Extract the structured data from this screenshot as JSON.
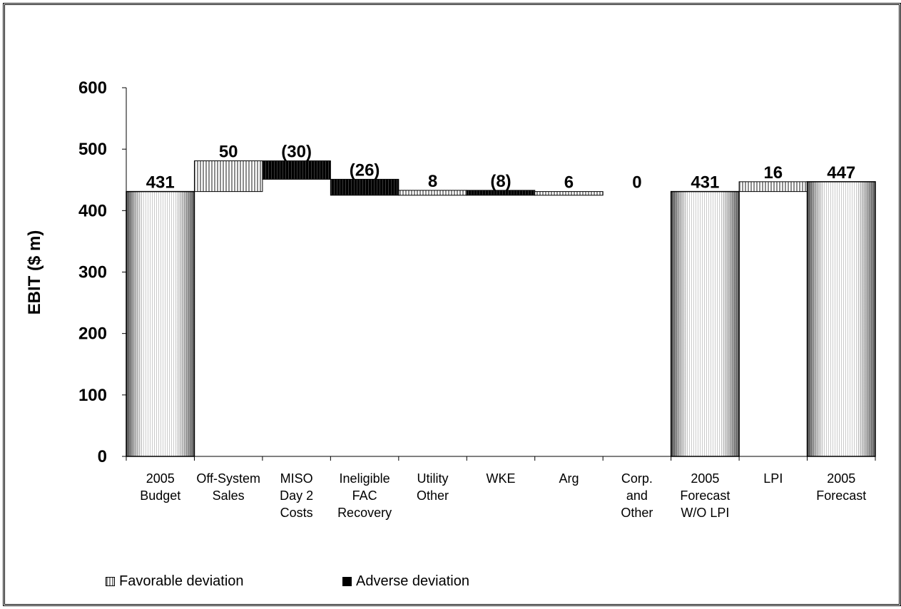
{
  "chart_data": {
    "type": "bar",
    "subtype": "waterfall",
    "ylabel": "EBIT ($ m)",
    "ylim": [
      0,
      600
    ],
    "yticks": [
      0,
      100,
      200,
      300,
      400,
      500,
      600
    ],
    "categories": [
      {
        "lines": [
          "2005",
          "Budget"
        ]
      },
      {
        "lines": [
          "Off-System",
          "Sales"
        ]
      },
      {
        "lines": [
          "MISO",
          "Day 2",
          "Costs"
        ]
      },
      {
        "lines": [
          "Ineligible",
          "FAC",
          "Recovery"
        ]
      },
      {
        "lines": [
          "Utility",
          "Other"
        ]
      },
      {
        "lines": [
          "WKE"
        ]
      },
      {
        "lines": [
          "Arg"
        ]
      },
      {
        "lines": [
          "Corp.",
          "and",
          "Other"
        ]
      },
      {
        "lines": [
          "2005",
          "Forecast",
          "W/O LPI"
        ]
      },
      {
        "lines": [
          "LPI"
        ]
      },
      {
        "lines": [
          "2005",
          "Forecast"
        ]
      }
    ],
    "bars": [
      {
        "kind": "total",
        "start": 0,
        "end": 431,
        "label": "431"
      },
      {
        "kind": "favorable",
        "start": 431,
        "end": 481,
        "label": "50"
      },
      {
        "kind": "adverse",
        "start": 481,
        "end": 451,
        "label": "(30)"
      },
      {
        "kind": "adverse",
        "start": 451,
        "end": 425,
        "label": "(26)"
      },
      {
        "kind": "favorable",
        "start": 425,
        "end": 433,
        "label": "8"
      },
      {
        "kind": "adverse",
        "start": 433,
        "end": 425,
        "label": "(8)"
      },
      {
        "kind": "favorable",
        "start": 425,
        "end": 431,
        "label": "6"
      },
      {
        "kind": "favorable",
        "start": 431,
        "end": 431,
        "label": "0"
      },
      {
        "kind": "total",
        "start": 0,
        "end": 431,
        "label": "431"
      },
      {
        "kind": "favorable",
        "start": 431,
        "end": 447,
        "label": "16"
      },
      {
        "kind": "total",
        "start": 0,
        "end": 447,
        "label": "447"
      }
    ],
    "legend": {
      "position": "bottom-left",
      "items": [
        {
          "name": "Favorable deviation",
          "kind": "favorable"
        },
        {
          "name": "Adverse deviation",
          "kind": "adverse"
        }
      ]
    },
    "grid": false
  }
}
